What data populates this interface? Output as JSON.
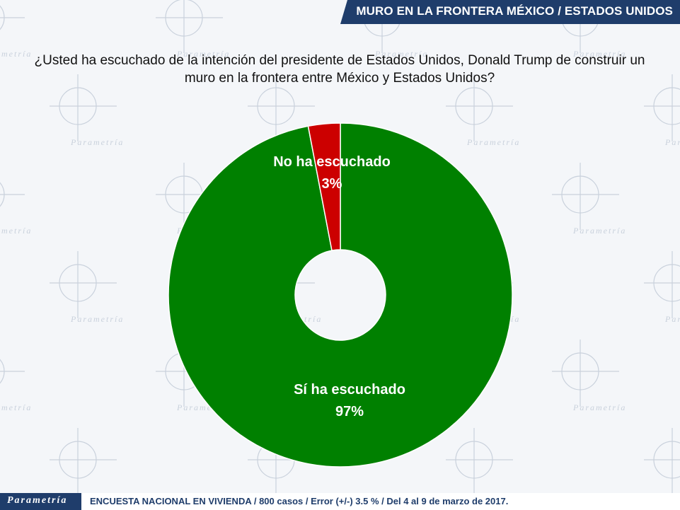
{
  "header": {
    "title": "MURO EN LA FRONTERA MÉXICO / ESTADOS UNIDOS"
  },
  "question": "¿Usted ha escuchado de la intención del presidente de Estados Unidos, Donald Trump de construir un muro en la frontera entre México y Estados Unidos?",
  "chart_data": {
    "type": "pie",
    "donut": true,
    "slices": [
      {
        "label": "Sí ha escuchado",
        "value": 97,
        "value_label": "97%",
        "color": "#008000"
      },
      {
        "label": "No ha escuchado",
        "value": 3,
        "value_label": "3%",
        "color": "#cc0000"
      }
    ]
  },
  "footer": {
    "logo": "Parametría",
    "text": "ENCUESTA NACIONAL EN VIVIENDA / 800 casos / Error (+/-) 3.5 % / Del 4 al 9 de marzo de 2017."
  },
  "watermark": {
    "text": "Parametría",
    "color": "#c9d1dc"
  },
  "colors": {
    "brand": "#1f3d6b"
  }
}
